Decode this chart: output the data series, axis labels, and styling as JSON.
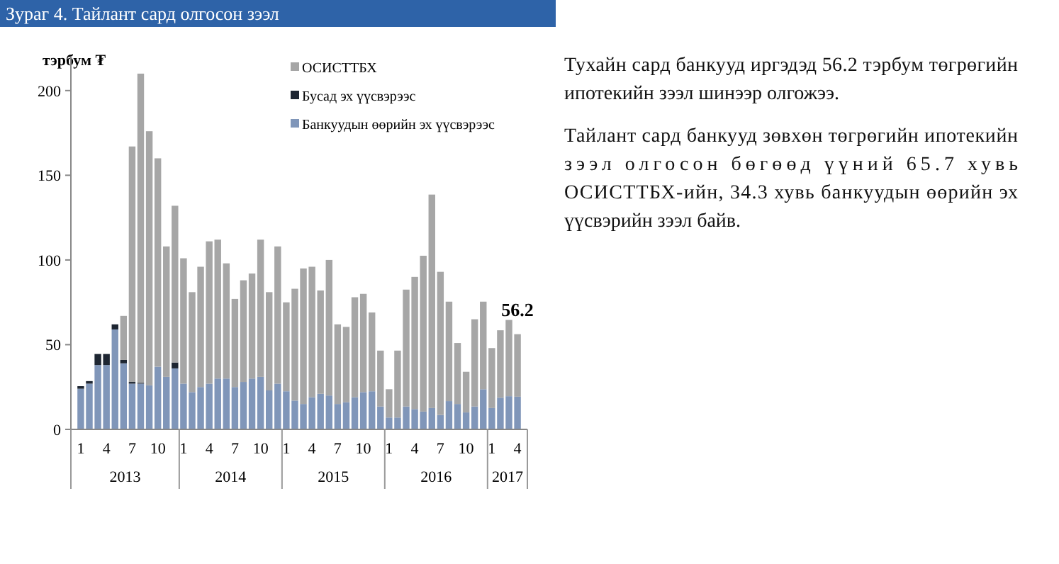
{
  "chart_data": {
    "type": "bar",
    "stacked": true,
    "title": "Зураг 4. Тайлант сард олгосон зээл",
    "ylabel": "тэрбум ₮",
    "categories": [
      "1",
      null,
      null,
      "4",
      null,
      null,
      "7",
      null,
      null,
      "10",
      null,
      null,
      "1",
      null,
      null,
      "4",
      null,
      null,
      "7",
      null,
      null,
      "10",
      null,
      null,
      "1",
      null,
      null,
      "4",
      null,
      null,
      "7",
      null,
      null,
      "10",
      null,
      null,
      "1",
      null,
      null,
      "4",
      null,
      null,
      "7",
      null,
      null,
      "10",
      null,
      null,
      "1",
      null,
      null,
      "4"
    ],
    "series": [
      {
        "name": "Банкуудын өөрийн эх үүсвэрээс",
        "color": "#8096b9",
        "values": [
          24,
          27,
          38,
          38,
          59,
          39,
          27,
          27,
          26,
          37,
          31,
          36,
          27,
          22,
          25,
          27,
          30,
          30,
          25,
          28,
          30,
          31,
          23,
          27,
          22.5,
          17,
          15,
          19,
          21,
          20,
          15,
          16,
          19,
          22,
          22.5,
          13.5,
          7,
          7,
          13.5,
          12,
          10.5,
          12.6,
          8.5,
          16.7,
          15,
          10,
          13.5,
          23.7,
          12.6,
          18.7,
          19.6,
          19.3
        ]
      },
      {
        "name": "Бусад эх үүсвэрээс",
        "color": "#1e2632",
        "values": [
          1.5,
          1.5,
          6.5,
          6.5,
          3,
          2,
          1,
          0.5,
          0,
          0,
          0,
          3.5,
          0,
          0,
          0,
          0,
          0,
          0,
          0,
          0,
          0,
          0,
          0,
          0,
          0,
          0,
          0,
          0,
          0,
          0,
          0,
          0,
          0,
          0,
          0,
          0,
          0,
          0,
          0,
          0,
          0,
          0,
          0,
          0,
          0,
          0,
          0,
          0,
          0,
          0,
          0,
          0
        ]
      },
      {
        "name": "ОСИСТТБХ",
        "color": "#a6a6a6",
        "values": [
          0,
          0,
          0,
          0,
          0,
          26,
          139,
          182.5,
          150,
          123,
          77,
          92.5,
          74,
          59,
          71,
          84,
          82,
          68,
          52,
          60,
          62,
          81,
          58,
          81,
          52.5,
          66,
          80,
          77,
          61,
          80,
          47,
          44.5,
          59,
          58,
          46.5,
          33,
          16.7,
          39.5,
          69,
          78,
          92,
          126,
          84.5,
          58.7,
          36,
          24,
          51.5,
          51.7,
          35.4,
          39.8,
          45,
          36.9
        ]
      }
    ],
    "totals": [
      null,
      null,
      null,
      null,
      null,
      null,
      null,
      null,
      null,
      null,
      null,
      null,
      null,
      null,
      null,
      null,
      null,
      null,
      null,
      null,
      null,
      null,
      null,
      null,
      null,
      null,
      null,
      null,
      null,
      null,
      null,
      null,
      null,
      null,
      null,
      null,
      null,
      null,
      null,
      null,
      null,
      null,
      null,
      null,
      null,
      null,
      null,
      null,
      null,
      null,
      null,
      "56.2"
    ],
    "ylim": [
      0,
      220
    ],
    "yticks": [
      0,
      50,
      100,
      150,
      200
    ],
    "legend": "top",
    "annotations": [
      "2013",
      "2014",
      "2015",
      "2016",
      "2017",
      "Тухайн сард банкууд иргэдэд 56.2 тэрбум төгрөгийн ипотекийн зээл шинээр олгожээ.",
      "Тайлант сард банкууд зөвхөн төгрөгийн ипотекийн зээл олгосон бөгөөд үүний 65.7 хувь ОСИСТТБХ-ийн, 34.3 хувь банкуудын өөрийн эх үүсвэрийн зээл байв."
    ]
  }
}
